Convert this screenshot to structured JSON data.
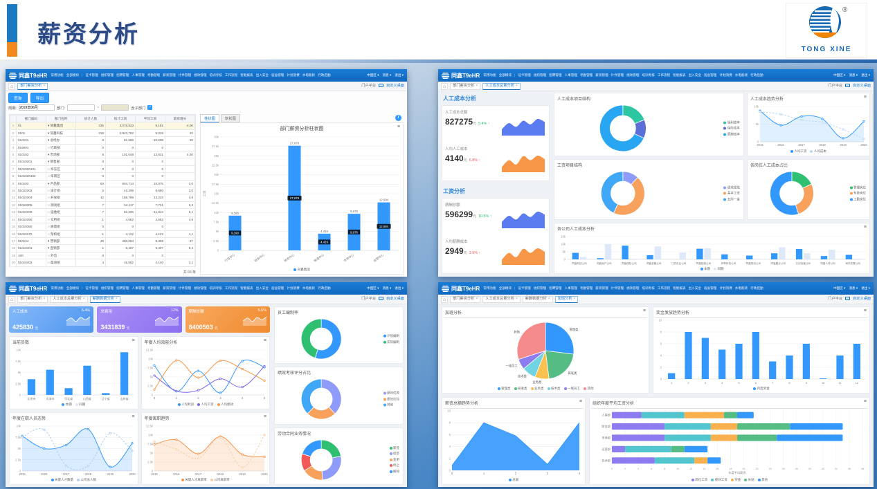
{
  "header": {
    "title": "薪资分析",
    "logo_text": "TONG XINE",
    "registered_mark": "®",
    "accent_blue": "#1b7ac2",
    "accent_orange": "#ee8a1e"
  },
  "navbar": {
    "brand": "同鑫T9eHR",
    "menus": [
      "常用功能",
      "全部模块",
      "|",
      "证卡管理",
      "组织管理",
      "招聘管理",
      "人事管理",
      "考勤管理",
      "薪资管理",
      "计件管理",
      "绩效管理",
      "培训考核",
      "工作流程",
      "智能报表",
      "出入安全",
      "宿舍管理",
      "计划消费",
      "水电能耗",
      "行政后勤"
    ],
    "right": [
      "中国区",
      "消息",
      "退出"
    ],
    "portal": "门户平台",
    "desktop": "自定义桌面"
  },
  "panels": {
    "dept": {
      "tabs": [
        {
          "label": "部门薪资分析",
          "active": true
        }
      ],
      "toolbar": {
        "query": "查询",
        "export": "导出"
      },
      "filter": {
        "period_label": "周期:",
        "period_value": "2019年06月",
        "dept_label": "部门:",
        "tilde": "~",
        "sub_label": "含子部门"
      },
      "info_icon": "i",
      "table": {
        "cols": [
          "部门编码",
          "部门名称",
          "统计人数",
          "统计工资",
          "平均工资",
          "薪资增长"
        ],
        "rows": [
          [
            "01",
            "▾ 同鑫集团",
            "335",
            "3,078,823",
            "9,191",
            "-2,00"
          ],
          [
            "0101",
            "▾ 同鑫科技",
            "319",
            "2,943,762",
            "9,228",
            "22"
          ],
          [
            "010101",
            "▾ 总经办",
            "8",
            "81,669",
            "10,209",
            "33"
          ],
          [
            "019001",
            "○ 行政部",
            "0",
            "0",
            "0",
            ""
          ],
          [
            "010102",
            "▾ 市场部",
            "8",
            "101,048",
            "12,631",
            "4,40"
          ],
          [
            "01010201",
            "▾ 销售部",
            "0",
            "0",
            "0",
            ""
          ],
          [
            "0101020101",
            "○ 华东区",
            "0",
            "0",
            "0",
            ""
          ],
          [
            "0101020102",
            "○ 华南区",
            "0",
            "0",
            "0",
            ""
          ],
          [
            "010103",
            "▾ 产品部",
            "60",
            "604,714",
            "10,075",
            "3,0"
          ],
          [
            "01010302",
            "○ 设计组",
            "5",
            "43,299",
            "8,660",
            "3,0"
          ],
          [
            "01010304",
            "○ 开发组",
            "12",
            "158,796",
            "13,233",
            "4,6"
          ],
          [
            "01010305",
            "○ 测试组",
            "7",
            "54,117",
            "7,731",
            "3,2"
          ],
          [
            "01010306",
            "○ 运维组",
            "7",
            "81,506",
            "11,644",
            "5,1"
          ],
          [
            "01010350",
            "○ 文档组",
            "1",
            "4,662",
            "4,662",
            "4,6"
          ],
          [
            "01010360",
            "○ 质量组",
            "0",
            "0",
            "0",
            ""
          ],
          [
            "01010370",
            "○ 架构组",
            "1",
            "4,122",
            "4,122",
            "4,1"
          ],
          [
            "010104",
            "▾ 营销部",
            "49",
            "460,063",
            "9,389",
            "97"
          ],
          [
            "01010401",
            "▾ 直销部",
            "1",
            "9,407",
            "9,407",
            "9,4"
          ],
          [
            "100",
            "○ 外包",
            "0",
            "0",
            "0",
            ""
          ],
          [
            "01010402",
            "○ 渠道组",
            "4",
            "16,562",
            "4,140",
            "3,1"
          ]
        ],
        "footer": "共 66 条"
      },
      "chart_tabs": [
        {
          "label": "柱状图",
          "active": true
        },
        {
          "label": "饼状图",
          "active": false
        }
      ]
    },
    "cost": {
      "tabs": [
        {
          "label": "部门薪资分析"
        },
        {
          "label": "人工成本总量分析",
          "active": true
        }
      ],
      "sections": [
        {
          "title": "人工成本分析",
          "metrics": [
            {
              "label": "人工成本总额",
              "value": "827275",
              "unit": "元",
              "delta": "5.4% ↑"
            },
            {
              "label": "人均人工成本",
              "value": "4140",
              "unit": "元",
              "delta": "6.8% ↑"
            }
          ]
        },
        {
          "title": "工资分析",
          "metrics": [
            {
              "label": "薪酬总额",
              "value": "596299",
              "unit": "元",
              "delta": "10.5% ↑"
            },
            {
              "label": "人均薪酬成本",
              "value": "2949",
              "unit": "元",
              "delta": "3.9% ↑"
            }
          ]
        }
      ]
    },
    "period": {
      "tabs": [
        {
          "label": "部门薪资分析"
        },
        {
          "label": "人工成本总量分析"
        },
        {
          "label": "薪酬数据分析",
          "active": true
        }
      ],
      "stats": [
        {
          "label": "人工成本",
          "value": "425830",
          "unit": "元",
          "delta": "6.4%"
        },
        {
          "label": "总费用",
          "value": "3431839",
          "unit": "元",
          "delta": "12%"
        },
        {
          "label": "薪酬总额",
          "value": "8400503",
          "unit": "元",
          "delta": "5.6%"
        }
      ]
    },
    "overtime": {
      "tabs": [
        {
          "label": "部门薪资分析"
        },
        {
          "label": "人工成本总量分析"
        },
        {
          "label": "薪酬数据分析"
        },
        {
          "label": "加班分析",
          "active": true
        }
      ]
    }
  },
  "chart_data": [
    {
      "id": "dept_bar",
      "type": "bar",
      "title": "部门薪资分析柱状图",
      "ylabel": "工资",
      "categories": [
        "行政中心",
        "财务中心",
        "研发中心",
        "制造中心",
        "市场中心",
        "运营中心"
      ],
      "values": [
        9190,
        0,
        27678,
        4419,
        9676,
        12694
      ],
      "bar_labels": [
        "9,190",
        "",
        "27,678",
        "4,419",
        "9,676",
        "12,694"
      ],
      "ymax": 30000,
      "yticks": [
        "0",
        "2.5k",
        "5k",
        "7.5k",
        "10k",
        "12.5k",
        "15k",
        "17.5k",
        "20k",
        "22.5k",
        "25k",
        "27.5k",
        "30k"
      ],
      "rotate_x": true,
      "ml": 26,
      "color": "#3398fe",
      "legend": [
        {
          "label": "同鑫集团",
          "color": "#3398fe"
        }
      ]
    },
    {
      "id": "cost_struct_donut",
      "type": "donut",
      "title": "人工成本项目结构",
      "legend_pos": "right",
      "slices": [
        {
          "label": "福利成本",
          "value": 19,
          "color": "#2dc5a2"
        },
        {
          "label": "保险成本",
          "value": 13,
          "color": "#5b6fd6"
        },
        {
          "label": "薪酬成本",
          "value": 68,
          "color": "#29a6f2"
        }
      ]
    },
    {
      "id": "salary_struct_donut",
      "type": "donut",
      "title": "工资项目结构",
      "legend_pos": "right",
      "slices": [
        {
          "label": "绩效提成",
          "value": 12,
          "color": "#8f9bf8"
        },
        {
          "label": "基本工资",
          "value": 45,
          "color": "#f7a15c"
        },
        {
          "label": "五险一金",
          "value": 43,
          "color": "#3fa7f5"
        }
      ]
    },
    {
      "id": "cost_trend_line",
      "type": "line",
      "title": "人工成本趋势分析",
      "ml": 16,
      "x": [
        "2015",
        "2016",
        "2017",
        "2018",
        "2019",
        "2020"
      ],
      "ymax": 10,
      "yticks": [
        "0",
        "5k",
        "10k"
      ],
      "series": [
        {
          "name": "人均工资",
          "color": "#3398fe",
          "values": [
            8.8,
            4.7,
            7.2,
            6.5,
            1.0,
            5.8
          ],
          "area": true,
          "area_opacity": 0.15
        },
        {
          "name": "人均成本",
          "color": "#b9d7f3",
          "values": [
            8.5,
            7.8,
            6.2,
            5.5,
            3.5,
            0.8
          ],
          "dash": true
        }
      ]
    },
    {
      "id": "post_cost_donut",
      "type": "donut",
      "title": "各岗位人工成本占比",
      "legend_pos": "right",
      "slices": [
        {
          "label": "管理岗位",
          "value": 18,
          "color": "#2fbf71"
        },
        {
          "label": "专技岗位",
          "value": 27,
          "color": "#f7a15c"
        },
        {
          "label": "工勤岗位",
          "value": 55,
          "color": "#3398fe"
        }
      ]
    },
    {
      "id": "company_cost_bar",
      "type": "bar",
      "title": "各公司人工成本分析",
      "ml": 16,
      "xfs": 3.6,
      "categories": [
        "同鑫科技公司",
        "同鑫地产公司",
        "同鑫保险公司",
        "同鑫金融公司",
        "江苏实业公司",
        "同鑫制造公司",
        "伊犁科技公司",
        "同鑫物流公司",
        "同鑫置业公司",
        "文化传媒公司",
        "同鑫人寿公司",
        "海外发展公司"
      ],
      "ymax": 15,
      "yticks": [
        "0",
        "5k",
        "10k",
        "15k"
      ],
      "series": [
        {
          "name": "本期",
          "color": "#3398fe",
          "values": [
            4.3,
            0.8,
            9,
            2.8,
            0,
            7,
            3.3,
            2.5,
            4,
            6.8,
            2.2,
            3
          ]
        },
        {
          "name": "同期",
          "color": "#dde9f8",
          "values": [
            1.5,
            10,
            0.5,
            8.5,
            4.5,
            7.3,
            0.3,
            0.4,
            8,
            4,
            6.3,
            0.5
          ]
        }
      ]
    },
    {
      "id": "headcount_bar",
      "type": "bar",
      "title": "当前员数",
      "ml": 16,
      "xfs": 4,
      "categories": [
        "北京市",
        "天津市",
        "河北省",
        "山西省",
        "辽宁省",
        "吉林省"
      ],
      "values": [
        3.5,
        5.6,
        1.5,
        6.5,
        0.4,
        9.5
      ],
      "ymax": 10,
      "yticks": [
        "0",
        "2.5k",
        "5k",
        "7.5k",
        "10k"
      ],
      "color": "#3398fe",
      "legend": [
        {
          "label": "本期",
          "color": "#3398fe"
        },
        {
          "label": "同期",
          "color": "#dde9f8"
        }
      ]
    },
    {
      "id": "efficiency_line",
      "type": "line",
      "title": "年度人均效能分析",
      "ml": 16,
      "x": [
        "0",
        "1",
        "2",
        "3",
        "4",
        "5"
      ],
      "ymax": 12.5,
      "yticks": [
        "0",
        "2.5k",
        "5k",
        "7.5k",
        "10k",
        "12.5k"
      ],
      "series": [
        {
          "name": "人均利润",
          "color": "#3398fe",
          "values": [
            8.2,
            1.0,
            6.7,
            0.6,
            9.4,
            7.7
          ]
        },
        {
          "name": "人均工资",
          "color": "#7b68ee",
          "values": [
            5.4,
            1.1,
            1.3,
            4.5,
            2.2,
            8.0
          ]
        },
        {
          "name": "人均绩效",
          "color": "#f79646",
          "values": [
            1.5,
            9.6,
            4.8,
            9.5,
            7.2,
            4.0
          ]
        }
      ]
    },
    {
      "id": "onjob_area",
      "type": "line",
      "title": "年度在职人员态势",
      "ml": 16,
      "x": [
        "2015",
        "2016",
        "2017",
        "2018",
        "2019",
        "2020"
      ],
      "ymax": 10,
      "yticks": [
        "0",
        "2.5k",
        "5k",
        "7.5k",
        "10k"
      ],
      "series": [
        {
          "name": "关键人才数量",
          "color": "#3398fe",
          "values": [
            7.8,
            5.0,
            5.8,
            9.3,
            0.9,
            6.2
          ],
          "area": true,
          "area_opacity": 0.18
        },
        {
          "name": "公司总人数",
          "color": "#a9cdf1",
          "values": [
            7.5,
            9.2,
            1.2,
            1.2,
            8.4,
            4.5
          ],
          "dash": true
        }
      ]
    },
    {
      "id": "turnover_area",
      "type": "line",
      "title": "年度离职趋势",
      "ml": 16,
      "x": [
        "2015",
        "2016",
        "2017",
        "2018",
        "2019",
        "2020"
      ],
      "ymax": 12.5,
      "yticks": [
        "0",
        "2.5k",
        "5k",
        "7.5k",
        "10k",
        "12.5k"
      ],
      "series": [
        {
          "name": "关键人才离职率",
          "color": "#f7944d",
          "values": [
            7.4,
            8.7,
            4.8,
            9.6,
            4.6,
            4.0
          ],
          "area": true,
          "area_opacity": 0.18
        },
        {
          "name": "公司离职率",
          "color": "#f5cda4",
          "values": [
            8.2,
            6.0,
            3.5,
            9.3,
            1.0,
            10.0
          ],
          "dash": true
        }
      ]
    },
    {
      "id": "staffing_donut",
      "type": "donut",
      "title": "员工编制率",
      "legend_pos": "right",
      "slices": [
        {
          "label": "计划编制",
          "value": 55,
          "color": "#3398fe"
        },
        {
          "label": "实际编制",
          "value": 45,
          "color": "#2fbf71"
        }
      ]
    },
    {
      "id": "perf_donut",
      "type": "donut",
      "title": "绩效考核评分占比",
      "legend_pos": "right",
      "slices": [
        {
          "label": "绩效优秀",
          "value": 38,
          "color": "#8f9bf8"
        },
        {
          "label": "绩效达标",
          "value": 24,
          "color": "#f7a15c"
        },
        {
          "label": "其他",
          "value": 38,
          "color": "#3fa7f5"
        }
      ]
    },
    {
      "id": "contract_donut",
      "type": "donut",
      "title": "劳动合同业务情况",
      "legend_pos": "right",
      "slices": [
        {
          "label": "新签",
          "value": 22,
          "color": "#2fbf71"
        },
        {
          "label": "续签",
          "value": 27,
          "color": "#8f9bf8"
        },
        {
          "label": "变更",
          "value": 17,
          "color": "#f7a15c"
        },
        {
          "label": "终止",
          "value": 14,
          "color": "#f25a5a"
        },
        {
          "label": "解除",
          "value": 20,
          "color": "#3398fe"
        }
      ]
    },
    {
      "id": "overtime_pie",
      "type": "pie",
      "title": "加班分析",
      "labels": true,
      "legend_pos": "bottom",
      "slices": [
        {
          "label": "管理类",
          "value": 27,
          "color": "#3398fe"
        },
        {
          "label": "研发类",
          "value": 21,
          "color": "#55bd84"
        },
        {
          "label": "业务类",
          "value": 8,
          "color": "#f9c14e"
        },
        {
          "label": "技术类",
          "value": 8,
          "color": "#71d4e3"
        },
        {
          "label": "一线员工",
          "value": 6,
          "color": "#8d7bf0"
        },
        {
          "label": "其他",
          "value": 30,
          "color": "#f58a8a"
        }
      ]
    },
    {
      "id": "bonus_bar",
      "type": "bar",
      "title": "奖金发放趋势分析",
      "ml": 12,
      "xfs": 4,
      "categories": [
        "1",
        "2",
        "3",
        "4",
        "5",
        "6",
        "7",
        "8",
        "9",
        "10",
        "11",
        "12"
      ],
      "values": [
        1,
        8,
        7,
        5,
        6,
        8,
        3,
        4,
        6,
        0.1,
        4,
        6
      ],
      "ymax": 10,
      "yticks": [
        "0",
        "2",
        "4",
        "6",
        "8",
        "10"
      ],
      "color": "#3398fe",
      "legend": [
        {
          "label": "月度奖金",
          "color": "#3398fe"
        }
      ]
    },
    {
      "id": "salary_total_area",
      "type": "line",
      "title": "薪资总额趋势分析",
      "ml": 12,
      "smooth": false,
      "x": [
        "0",
        "1",
        "2",
        "3",
        "4"
      ],
      "ymax": 10,
      "yticks": [
        "0",
        "2",
        "4",
        "6",
        "8",
        "10"
      ],
      "series": [
        {
          "name": "总额",
          "color": "#3398fe",
          "values": [
            0.8,
            8,
            5.8,
            1,
            8
          ],
          "area": true,
          "area_opacity": 0.9,
          "marker": false
        }
      ]
    },
    {
      "id": "org_salary_stacked",
      "type": "stackedh",
      "title": "组织年度平均工资分析",
      "xmax": 38,
      "xtick_step": 2,
      "xlabel": "年度平均薪资",
      "categories": [
        "人事部",
        "财务部",
        "市场部",
        "运营部",
        "技术部"
      ],
      "series": [
        {
          "name": "岗位工资",
          "color": "#8d7bf0",
          "values": [
            4.5,
            8,
            8,
            2,
            6.5
          ]
        },
        {
          "name": "绩效工资",
          "color": "#52c5cf",
          "values": [
            6.5,
            7,
            7,
            7,
            6
          ]
        },
        {
          "name": "奖金",
          "color": "#f9b04e",
          "values": [
            6,
            4,
            4,
            0,
            2
          ]
        },
        {
          "name": "补贴",
          "color": "#55bd84",
          "values": [
            2,
            8,
            6,
            2,
            0
          ]
        },
        {
          "name": "其他",
          "color": "#3398fe",
          "values": [
            2.5,
            8,
            10,
            3.5,
            2
          ]
        }
      ]
    },
    {
      "id": "spark_blue",
      "type": "spark",
      "values": [
        2,
        4.5,
        3,
        5.5,
        4,
        6.2,
        5
      ],
      "color": "#5b7cf0"
    },
    {
      "id": "spark_orange",
      "type": "spark",
      "values": [
        1.5,
        4.2,
        2.5,
        5.8,
        4.2,
        6,
        4.6
      ],
      "color": "#f79646"
    },
    {
      "id": "spark_white",
      "type": "spark",
      "values": [
        3,
        5.5,
        2.5,
        6,
        4,
        6.5
      ],
      "color": "rgba(255,255,255,0.35)",
      "stroke": "#ffffff"
    }
  ]
}
